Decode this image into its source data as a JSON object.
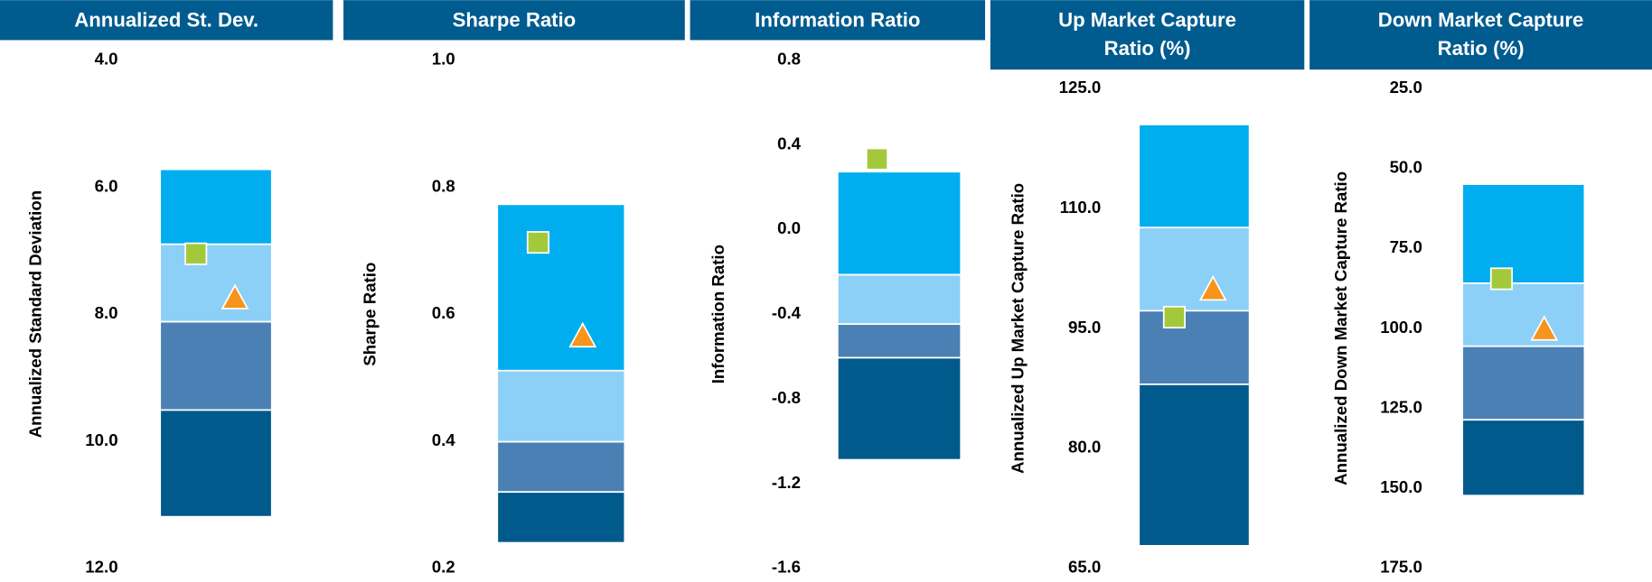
{
  "chart_data": [
    {
      "type": "floating-bar",
      "title": [
        "Annualized St. Dev."
      ],
      "ylabel": "Annualized Standard Deviation",
      "ylim": [
        12.0,
        4.0
      ],
      "yticks": [
        {
          "value": 4,
          "label": "4.0"
        },
        {
          "value": 6,
          "label": "6.0"
        },
        {
          "value": 8,
          "label": "8.0"
        },
        {
          "value": 10,
          "label": "10.0"
        },
        {
          "value": 12,
          "label": "12.0"
        }
      ],
      "values": [
        5.72,
        6.9,
        8.12,
        9.51,
        11.19
      ],
      "colors": [
        "#00aeef",
        "#8ccff7",
        "#4a80b4",
        "#005a8c"
      ],
      "markers": [
        {
          "shape": "square",
          "color": "#a3c93a",
          "value": 7.05
        },
        {
          "shape": "triangle",
          "color": "#f7941d",
          "value": 7.73
        }
      ]
    },
    {
      "type": "floating-bar",
      "title": [
        "Sharpe Ratio"
      ],
      "ylabel": "Sharpe Ratio",
      "ylim": [
        0.2,
        1.0
      ],
      "yticks": [
        {
          "value": 1,
          "label": "1.0"
        },
        0.8,
        0.6,
        0.4,
        0.2
      ],
      "values": [
        0.773,
        0.511,
        0.399,
        0.32,
        0.24
      ],
      "colors": [
        "#00aeef",
        "#8ccff7",
        "#4a80b4",
        "#005a8c"
      ],
      "markers": [
        {
          "shape": "square",
          "color": "#a3c93a",
          "value": 0.713
        },
        {
          "shape": "triangle",
          "color": "#f7941d",
          "value": 0.567
        }
      ]
    },
    {
      "type": "floating-bar",
      "title": [
        "Information Ratio"
      ],
      "ylabel": "Information Ratio",
      "ylim": [
        -1.6,
        0.8
      ],
      "yticks": [
        0.8,
        0.4,
        {
          "value": 0,
          "label": "0.0"
        },
        -0.4,
        -0.8,
        -1.2,
        -1.6
      ],
      "values": [
        0.273,
        -0.214,
        -0.447,
        -0.606,
        -1.088
      ],
      "colors": [
        "#00aeef",
        "#8ccff7",
        "#4a80b4",
        "#005a8c"
      ],
      "markers": [
        {
          "shape": "square",
          "color": "#a3c93a",
          "value": 0.333
        }
      ]
    },
    {
      "type": "floating-bar",
      "title": [
        "Up Market Capture",
        "Ratio (%)"
      ],
      "ylabel": "Annualized Up Market Capture Ratio",
      "ylim": [
        65,
        125
      ],
      "yticks": [
        {
          "value": 125,
          "label": "125.0"
        },
        {
          "value": 110,
          "label": "110.0"
        },
        {
          "value": 95,
          "label": "95.0"
        },
        {
          "value": 80,
          "label": "80.0"
        },
        {
          "value": 65,
          "label": "65.0"
        }
      ],
      "values": [
        120.5,
        107.6,
        97.2,
        88.0,
        67.8
      ],
      "colors": [
        "#00aeef",
        "#8ccff7",
        "#4a80b4",
        "#005a8c"
      ],
      "markers": [
        {
          "shape": "square",
          "color": "#a3c93a",
          "value": 96.4
        },
        {
          "shape": "triangle",
          "color": "#f7941d",
          "value": 100.0
        }
      ]
    },
    {
      "type": "floating-bar",
      "title": [
        "Down Market Capture",
        "Ratio (%)"
      ],
      "ylabel": "Annualized Down Market Capture Ratio",
      "ylim": [
        175,
        25
      ],
      "yticks": [
        {
          "value": 25,
          "label": "25.0"
        },
        {
          "value": 50,
          "label": "50.0"
        },
        {
          "value": 75,
          "label": "75.0"
        },
        {
          "value": 100,
          "label": "100.0"
        },
        {
          "value": 125,
          "label": "125.0"
        },
        {
          "value": 150,
          "label": "150.0"
        },
        {
          "value": 175,
          "label": "175.0"
        }
      ],
      "values": [
        54.9,
        85.9,
        105.6,
        128.6,
        152.3
      ],
      "colors": [
        "#00aeef",
        "#8ccff7",
        "#4a80b4",
        "#005a8c"
      ],
      "markers": [
        {
          "shape": "square",
          "color": "#a3c93a",
          "value": 84.5
        },
        {
          "shape": "triangle",
          "color": "#f7941d",
          "value": 100.0
        }
      ]
    }
  ]
}
